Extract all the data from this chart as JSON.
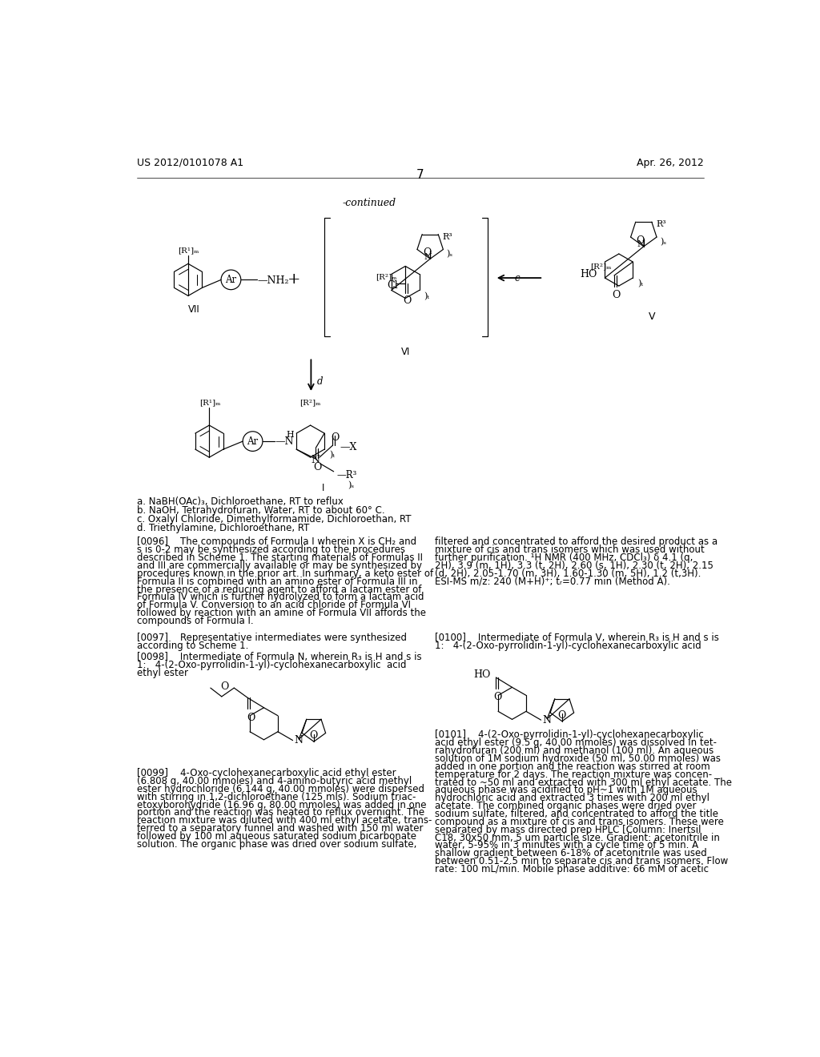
{
  "page_header_left": "US 2012/0101078 A1",
  "page_header_right": "Apr. 26, 2012",
  "page_number": "7",
  "continued_label": "-continued",
  "background_color": "#ffffff",
  "footnotes": [
    "a. NaBH(OAc)₃, Dichloroethane, RT to reflux",
    "b. NaOH, Tetrahydrofuran, Water, RT to about 60° C.",
    "c. Oxalyl Chloride, Dimethylformamide, Dichloroethan, RT",
    "d. Triethylamine, Dichloroethane, RT"
  ],
  "paragraph_0096_left": [
    "[0096]    The compounds of Formula I wherein X is CH₂ and",
    "s is 0-2 may be synthesized according to the procedures",
    "described in Scheme 1. The starting materials of Formulas II",
    "and III are commercially available or may be synthesized by",
    "procedures known in the prior art. In summary, a keto ester of",
    "Formula II is combined with an amino ester of Formula III in",
    "the presence of a reducing agent to afford a lactam ester of",
    "Formula IV which is further hydrolyzed to form a lactam acid",
    "of Formula V. Conversion to an acid chloride of Formula VI",
    "followed by reaction with an amine of Formula VII affords the",
    "compounds of Formula I."
  ],
  "paragraph_0096_right": [
    "filtered and concentrated to afford the desired product as a",
    "mixture of cis and trans isomers which was used without",
    "further purification. ¹H NMR (400 MHz, CDCl₃) δ 4.1 (q,",
    "2H), 3.9 (m, 1H), 3.3 (t, 2H), 2.60 (s, 1H), 2.30 (t, 2H), 2.15",
    "(d, 2H), 2.05-1.70 (m, 3H), 1.60-1.30 (m, 5H), 1.2 (t,3H).",
    "ESI-MS m/z: 240 (M+H)⁺; tᵣ=0.77 min (Method A)."
  ],
  "paragraph_0097": [
    "[0097]    Representative intermediates were synthesized",
    "according to Scheme 1."
  ],
  "paragraph_0098": [
    "[0098]    Intermediate of Formula N, wherein R₃ is H and s is",
    "1:   4-(2-Oxo-pyrrolidin-1-yl)-cyclohexanecarboxylic  acid",
    "ethyl ester"
  ],
  "paragraph_0099": [
    "[0099]    4-Oxo-cyclohexanecarboxylic acid ethyl ester",
    "(6.808 g, 40.00 mmoles) and 4-amino-butyric acid methyl",
    "ester hydrochloride (6.144 g, 40.00 mmoles) were dispersed",
    "with stirring in 1,2-dichloroethane (125 mls). Sodium triac-",
    "etoxyborohydride (16.96 g, 80.00 mmoles) was added in one",
    "portion and the reaction was heated to reflux overnight. The",
    "reaction mixture was diluted with 400 ml ethyl acetate, trans-",
    "ferred to a separatory funnel and washed with 150 ml water",
    "followed by 100 ml aqueous saturated sodium bicarbonate",
    "solution. The organic phase was dried over sodium sulfate,"
  ],
  "paragraph_0100_left": [
    "[0100]    Intermediate of Formula V, wherein R₃ is H and s is",
    "1:   4-(2-Oxo-pyrrolidin-1-yl)-cyclohexanecarboxylic acid"
  ],
  "paragraph_0101_right": [
    "[0101]    4-(2-Oxo-pyrrolidin-1-yl)-cyclohexanecarboxylic",
    "acid ethyl ester (9.5 g, 40.00 mmoles) was dissolved in tet-",
    "rahydrofuran (200 ml) and methanol (100 ml). An aqueous",
    "solution of 1M sodium hydroxide (50 ml, 50.00 mmoles) was",
    "added in one portion and the reaction was stirred at room",
    "temperature for 2 days. The reaction mixture was concen-",
    "trated to ~50 ml and extracted with 300 ml ethyl acetate. The",
    "aqueous phase was acidified to pH~1 with 1M aqueous",
    "hydrochloric acid and extracted 3 times with 200 ml ethyl",
    "acetate. The combined organic phases were dried over",
    "sodium sulfate, filtered, and concentrated to afford the title",
    "compound as a mixture of cis and trans isomers. These were",
    "separated by mass directed prep HPLC [Column: Inertsil",
    "C18, 30x50 mm, 5 um particle size. Gradient: acetonitrile in",
    "water, 5-95% in 3 minutes with a cycle time of 5 min. A",
    "shallow gradient between 6-18% of acetonitrile was used",
    "between 0.51-2.5 min to separate cis and trans isomers. Flow",
    "rate: 100 mL/min. Mobile phase additive: 66 mM of acetic"
  ]
}
